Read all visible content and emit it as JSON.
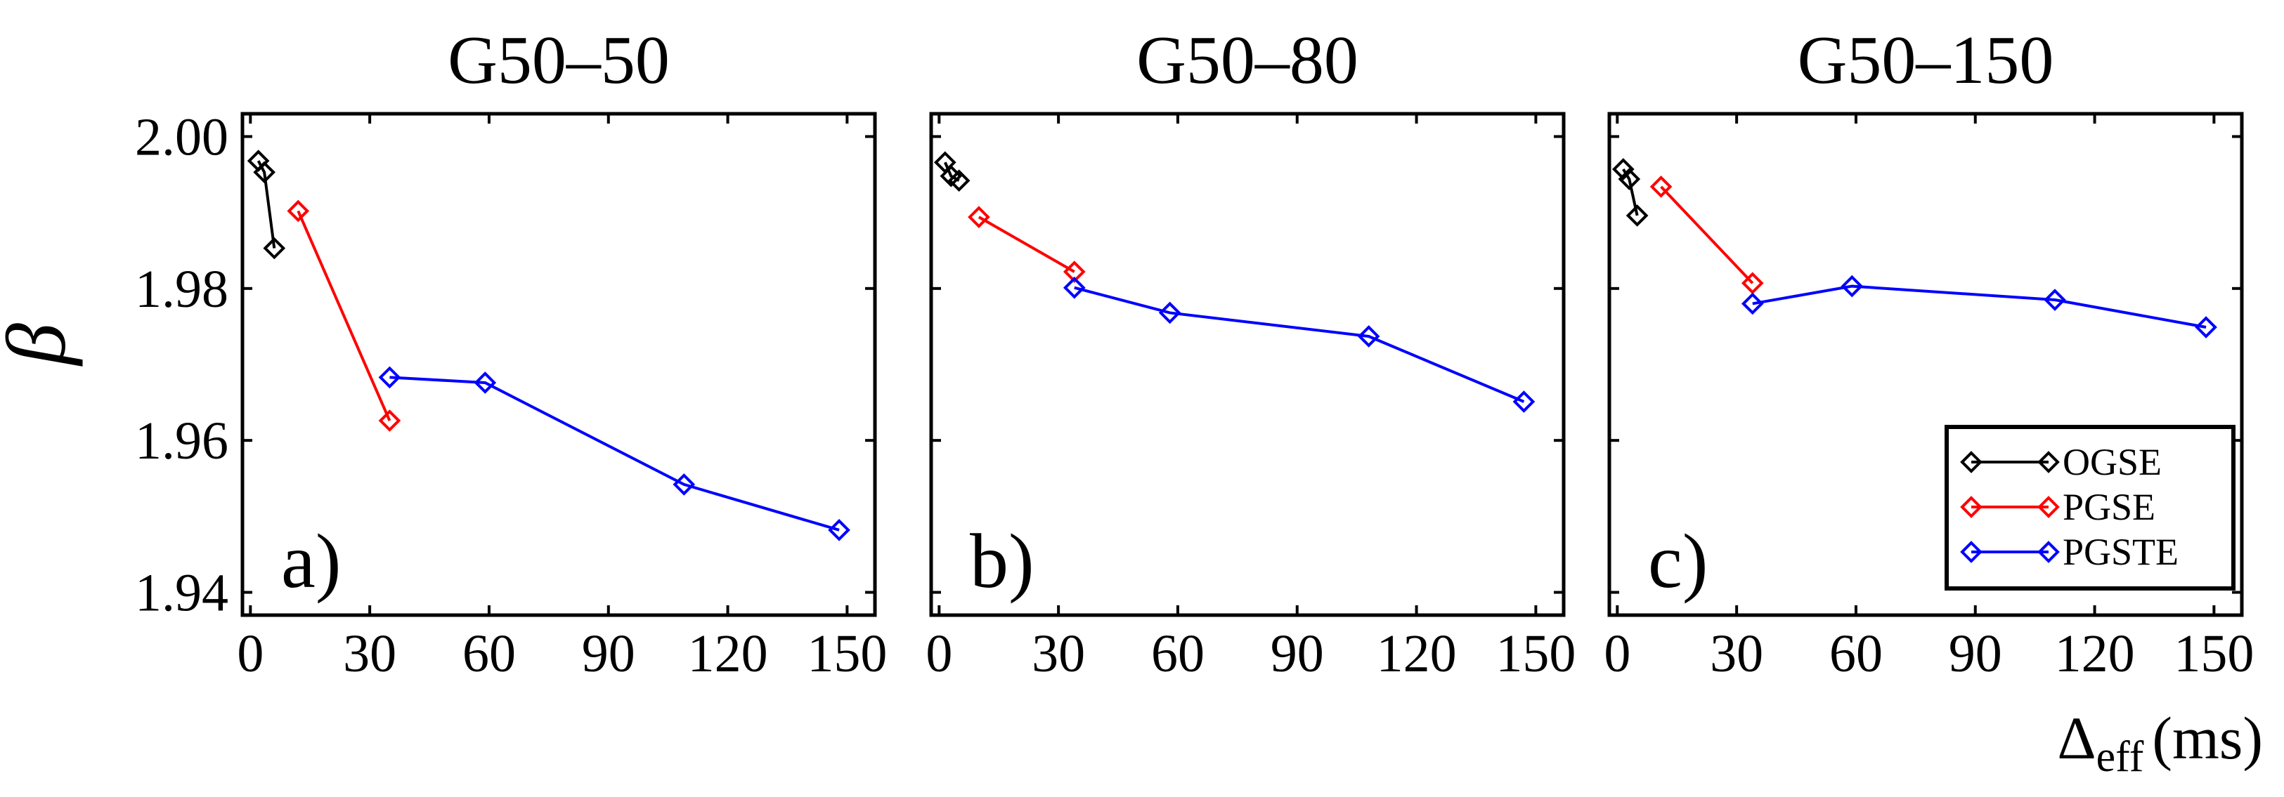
{
  "figure": {
    "ylabel": "β",
    "xlabel_symbol": "Δ",
    "xlabel_sub": "eff",
    "xlabel_unit": "(ms)"
  },
  "chart_data": [
    {
      "type": "line",
      "title": "G50–50",
      "panel_label": "a)",
      "xlabel": "Δeff (ms)",
      "ylabel": "β",
      "xlim": [
        -2,
        157
      ],
      "ylim": [
        1.937,
        2.003
      ],
      "xticks": [
        0,
        30,
        60,
        90,
        120,
        150
      ],
      "xtick_labels": [
        "0",
        "30",
        "60",
        "90",
        "120",
        "150"
      ],
      "yticks": [
        1.94,
        1.96,
        1.98,
        2.0
      ],
      "ytick_labels": [
        "1.94",
        "1.96",
        "1.98",
        "2.00"
      ],
      "series": [
        {
          "name": "OGSE",
          "color": "#000000",
          "x": [
            2,
            3.5,
            6
          ],
          "y": [
            1.9968,
            1.9953,
            1.9853
          ]
        },
        {
          "name": "PGSE",
          "color": "#ff0000",
          "x": [
            12,
            35
          ],
          "y": [
            1.9902,
            1.9626
          ]
        },
        {
          "name": "PGSTE",
          "color": "#0000ff",
          "x": [
            35,
            59,
            109,
            148
          ],
          "y": [
            1.9683,
            1.9676,
            1.9542,
            1.9482
          ]
        }
      ]
    },
    {
      "type": "line",
      "title": "G50–80",
      "panel_label": "b)",
      "xlabel": "Δeff (ms)",
      "ylabel": "β",
      "xlim": [
        -2,
        157
      ],
      "ylim": [
        1.937,
        2.003
      ],
      "xticks": [
        0,
        30,
        60,
        90,
        120,
        150
      ],
      "xtick_labels": [
        "0",
        "30",
        "60",
        "90",
        "120",
        "150"
      ],
      "yticks": [
        1.94,
        1.96,
        1.98,
        2.0
      ],
      "series": [
        {
          "name": "OGSE",
          "color": "#000000",
          "x": [
            1.5,
            3,
            5
          ],
          "y": [
            1.9966,
            1.9948,
            1.9942
          ]
        },
        {
          "name": "PGSE",
          "color": "#ff0000",
          "x": [
            10,
            34
          ],
          "y": [
            1.9894,
            1.9822
          ]
        },
        {
          "name": "PGSTE",
          "color": "#0000ff",
          "x": [
            34,
            58,
            108,
            147
          ],
          "y": [
            1.9801,
            1.9768,
            1.9737,
            1.9651
          ]
        }
      ]
    },
    {
      "type": "line",
      "title": "G50–150",
      "panel_label": "c)",
      "xlabel": "Δeff (ms)",
      "ylabel": "β",
      "xlim": [
        -2,
        157
      ],
      "ylim": [
        1.937,
        2.003
      ],
      "xticks": [
        0,
        30,
        60,
        90,
        120,
        150
      ],
      "xtick_labels": [
        "0",
        "30",
        "60",
        "90",
        "120",
        "150"
      ],
      "yticks": [
        1.94,
        1.96,
        1.98,
        2.0
      ],
      "legend": {
        "position": "bottom-right",
        "entries": [
          "OGSE",
          "PGSE",
          "PGSTE"
        ]
      },
      "series": [
        {
          "name": "OGSE",
          "color": "#000000",
          "x": [
            1.5,
            3,
            5
          ],
          "y": [
            1.9957,
            1.9944,
            1.9896
          ]
        },
        {
          "name": "PGSE",
          "color": "#ff0000",
          "x": [
            11,
            34
          ],
          "y": [
            1.9934,
            1.9807
          ]
        },
        {
          "name": "PGSTE",
          "color": "#0000ff",
          "x": [
            34,
            59,
            110,
            148
          ],
          "y": [
            1.978,
            1.9803,
            1.9785,
            1.9749
          ]
        }
      ]
    }
  ]
}
